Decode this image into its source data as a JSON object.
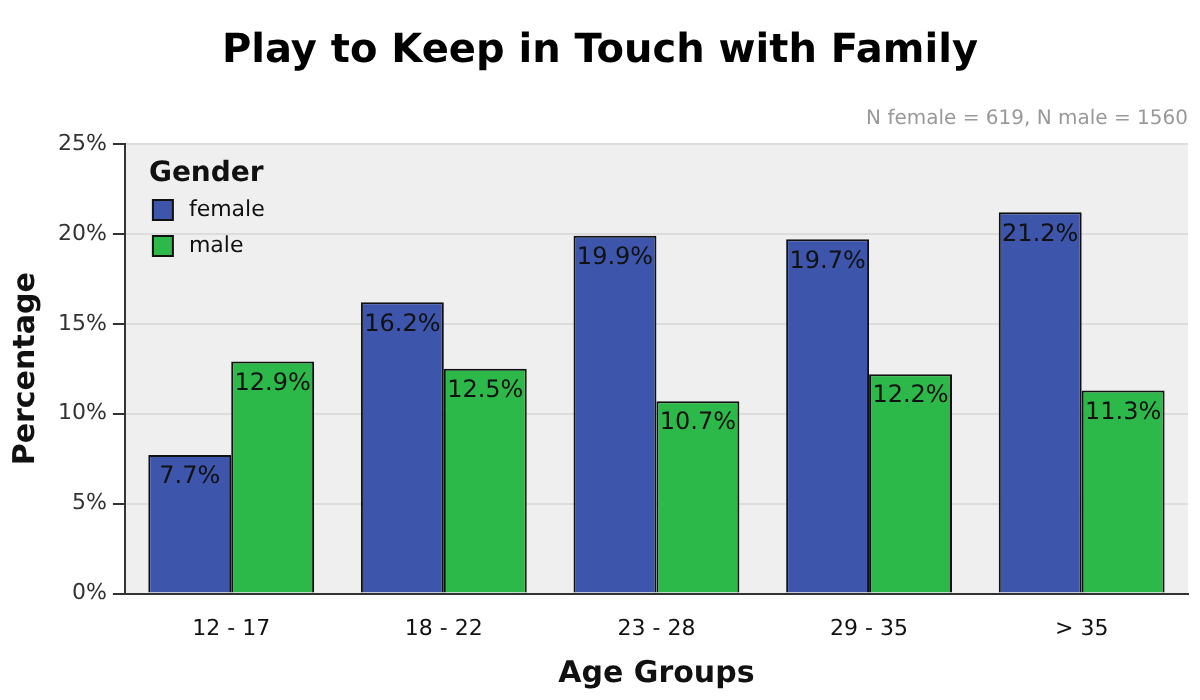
{
  "chart_data": {
    "type": "bar",
    "title": "Play to Keep in Touch with Family",
    "xlabel": "Age Groups",
    "ylabel": "Percentage",
    "legend_title": "Gender",
    "annotations": [
      "N female = 619, N male = 1560"
    ],
    "categories": [
      "12 - 17",
      "18 - 22",
      "23 - 28",
      "29 - 35",
      "> 35"
    ],
    "series": [
      {
        "name": "female",
        "color": "#3d55ab",
        "values": [
          7.7,
          16.2,
          19.9,
          19.7,
          21.2
        ],
        "value_labels": [
          "7.7%",
          "16.2%",
          "19.9%",
          "19.7%",
          "21.2%"
        ]
      },
      {
        "name": "male",
        "color": "#2db84a",
        "values": [
          12.9,
          12.5,
          10.7,
          12.2,
          11.3
        ],
        "value_labels": [
          "12.9%",
          "12.5%",
          "10.7%",
          "12.2%",
          "11.3%"
        ]
      }
    ],
    "ylim": [
      0,
      25
    ],
    "yticks": [
      {
        "value": 0,
        "label": "0%"
      },
      {
        "value": 5,
        "label": "5%"
      },
      {
        "value": 10,
        "label": "10%"
      },
      {
        "value": 15,
        "label": "15%"
      },
      {
        "value": 20,
        "label": "20%"
      },
      {
        "value": 25,
        "label": "25%"
      }
    ],
    "grid": "y",
    "legend": "top left"
  }
}
